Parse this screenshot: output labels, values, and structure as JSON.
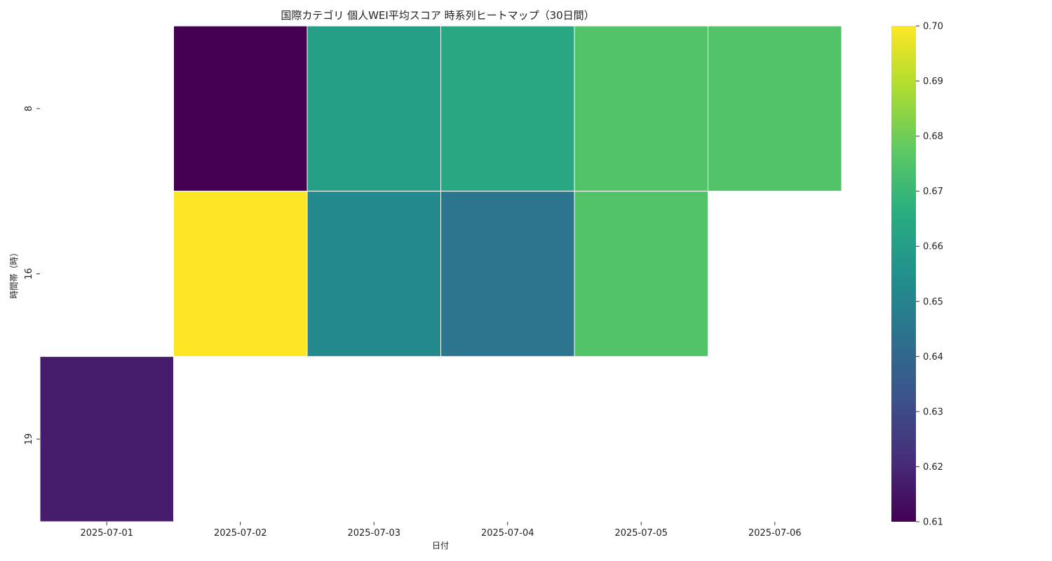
{
  "chart_data": {
    "type": "heatmap",
    "title": "国際カテゴリ 個人WEI平均スコア 時系列ヒートマップ（30日間）",
    "xlabel": "日付",
    "ylabel": "時間帯（時）",
    "x": [
      "2025-07-01",
      "2025-07-02",
      "2025-07-03",
      "2025-07-04",
      "2025-07-05",
      "2025-07-06"
    ],
    "y": [
      "8",
      "16",
      "19"
    ],
    "values": [
      [
        null,
        0.61,
        0.661,
        0.664,
        0.675,
        0.675
      ],
      [
        null,
        0.7,
        0.652,
        0.645,
        0.675,
        null
      ],
      [
        0.617,
        null,
        null,
        null,
        null,
        null
      ]
    ],
    "colormap": "viridis",
    "colorbar": {
      "min": 0.61,
      "max": 0.7,
      "ticks": [
        "0.61",
        "0.62",
        "0.63",
        "0.64",
        "0.65",
        "0.66",
        "0.67",
        "0.68",
        "0.69",
        "0.70"
      ]
    },
    "cell_border_color": "#ffffff",
    "missing_color": "#ffffff"
  }
}
